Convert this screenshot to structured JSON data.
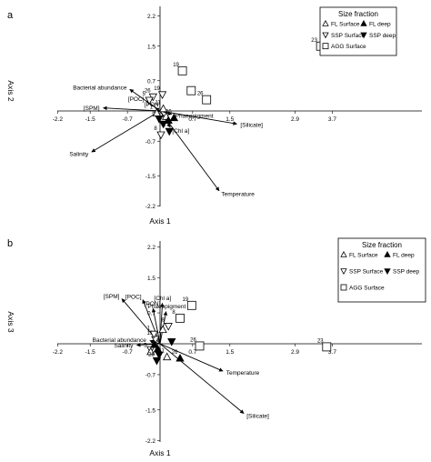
{
  "figure": {
    "panel_letters": [
      "a",
      "b"
    ]
  },
  "chart_data": [
    {
      "type": "scatter",
      "panel": "a",
      "title": "",
      "xlabel": "Axis 1",
      "ylabel": "Axis 2",
      "xlim": [
        -2.2,
        3.7
      ],
      "ylim": [
        -2.2,
        2.2
      ],
      "xticks": [
        "-2.2",
        "-1.5",
        "-0.7",
        "0.7",
        "1.5",
        "2.9",
        "3.7"
      ],
      "yticks": [
        "2.2",
        "1.5",
        "0.7",
        "-0.7",
        "-1.5",
        "-2.2"
      ],
      "legend": {
        "title": "Size fraction",
        "position": "top-right",
        "entries": [
          {
            "label": "FL Surface",
            "marker": "triangle-up-open"
          },
          {
            "label": "FL deep",
            "marker": "triangle-up-filled"
          },
          {
            "label": "SSP Surface",
            "marker": "triangle-down-open"
          },
          {
            "label": "SSP deep",
            "marker": "triangle-down-filled"
          },
          {
            "label": "AGG Surface",
            "marker": "square-open"
          }
        ]
      },
      "vectors": [
        {
          "label": "Bacterial abundance",
          "x": -0.65,
          "y": 0.5
        },
        {
          "label": "[POC]",
          "x": -0.28,
          "y": 0.23
        },
        {
          "label": "[PON]",
          "x": -0.1,
          "y": 0.07
        },
        {
          "label": "[SPM]",
          "x": -1.22,
          "y": 0.07
        },
        {
          "label": "Salinity",
          "x": -1.47,
          "y": -0.95
        },
        {
          "label": "[Chl a]",
          "x": 0.22,
          "y": -0.38
        },
        {
          "label": "Phaeopigment",
          "x": 0.25,
          "y": -0.08
        },
        {
          "label": "[Silicate]",
          "x": 1.65,
          "y": -0.3
        },
        {
          "label": "Temperature",
          "x": 1.27,
          "y": -1.85
        }
      ],
      "points": [
        {
          "group": "AGG Surface",
          "site": "23",
          "x": 3.45,
          "y": 1.5
        },
        {
          "group": "AGG Surface",
          "site": "19",
          "x": 0.48,
          "y": 0.93
        },
        {
          "group": "AGG Surface",
          "site": "",
          "x": 0.67,
          "y": 0.47
        },
        {
          "group": "AGG Surface",
          "site": "26",
          "x": 1.0,
          "y": 0.26
        },
        {
          "group": "SSP Surface",
          "site": "19",
          "x": 0.05,
          "y": 0.38
        },
        {
          "group": "SSP Surface",
          "site": "26",
          "x": -0.15,
          "y": 0.33
        },
        {
          "group": "SSP Surface",
          "site": "5",
          "x": -0.23,
          "y": 0.25
        },
        {
          "group": "FL Surface",
          "site": "11",
          "x": 0.07,
          "y": 0.05
        },
        {
          "group": "FL Surface",
          "site": "1",
          "x": -0.07,
          "y": -0.05
        },
        {
          "group": "FL Surface",
          "site": "",
          "x": 0.13,
          "y": -0.13
        },
        {
          "group": "SSP Surface",
          "site": "8",
          "x": 0.02,
          "y": -0.55
        },
        {
          "group": "SSP deep",
          "site": "8",
          "x": -0.02,
          "y": -0.18
        },
        {
          "group": "SSP deep",
          "site": "",
          "x": 0.07,
          "y": -0.3
        },
        {
          "group": "SSP deep",
          "site": "5",
          "x": 0.2,
          "y": -0.47
        },
        {
          "group": "FL deep",
          "site": "26",
          "x": 0.3,
          "y": -0.16
        },
        {
          "group": "FL deep",
          "site": "",
          "x": 0.18,
          "y": -0.22
        }
      ]
    },
    {
      "type": "scatter",
      "panel": "b",
      "title": "",
      "xlabel": "Axis 1",
      "ylabel": "Axis 3",
      "xlim": [
        -2.2,
        3.7
      ],
      "ylim": [
        -2.2,
        2.2
      ],
      "xticks": [
        "-2.2",
        "-1.5",
        "-0.7",
        "0.7",
        "1.5",
        "2.9",
        "3.7"
      ],
      "yticks": [
        "2.2",
        "1.5",
        "0.7",
        "-0.7",
        "-1.5",
        "-2.2"
      ],
      "legend": {
        "title": "Size fraction",
        "position": "top-right",
        "entries": [
          {
            "label": "FL Surface",
            "marker": "triangle-up-open"
          },
          {
            "label": "FL deep",
            "marker": "triangle-up-filled"
          },
          {
            "label": "SSP Surface",
            "marker": "triangle-down-open"
          },
          {
            "label": "SSP deep",
            "marker": "triangle-down-filled"
          },
          {
            "label": "AGG Surface",
            "marker": "square-open"
          }
        ]
      },
      "vectors": [
        {
          "label": "[SPM]",
          "x": -0.82,
          "y": 1.02
        },
        {
          "label": "[POC]",
          "x": -0.37,
          "y": 1.0
        },
        {
          "label": "[PON]",
          "x": -0.15,
          "y": 0.8
        },
        {
          "label": "[Chl a]",
          "x": 0.05,
          "y": 0.92
        },
        {
          "label": "Phaeopigment",
          "x": 0.13,
          "y": 0.73
        },
        {
          "label": "Bacterial abundance",
          "x": -0.22,
          "y": 0.07
        },
        {
          "label": "Salinity",
          "x": -0.5,
          "y": -0.03
        },
        {
          "label": "Temperature",
          "x": 1.35,
          "y": -0.62
        },
        {
          "label": "[Silicate]",
          "x": 1.8,
          "y": -1.58
        }
      ],
      "points": [
        {
          "group": "AGG Surface",
          "site": "19",
          "x": 0.68,
          "y": 0.87
        },
        {
          "group": "AGG Surface",
          "site": "8",
          "x": 0.43,
          "y": 0.58
        },
        {
          "group": "AGG Surface",
          "site": "26",
          "x": 0.85,
          "y": -0.05
        },
        {
          "group": "AGG Surface",
          "site": "23",
          "x": 3.58,
          "y": -0.07
        },
        {
          "group": "SSP Surface",
          "site": "8",
          "x": 0.18,
          "y": 0.4
        },
        {
          "group": "SSP Surface",
          "site": "19",
          "x": -0.1,
          "y": 0.1
        },
        {
          "group": "SSP Surface",
          "site": "1",
          "x": -0.13,
          "y": 0.22
        },
        {
          "group": "SSP Surface",
          "site": "",
          "x": -0.2,
          "y": -0.13
        },
        {
          "group": "FL Surface",
          "site": "11",
          "x": 0.15,
          "y": -0.3
        },
        {
          "group": "FL Surface",
          "site": "",
          "x": 0.06,
          "y": 0.32
        },
        {
          "group": "FL Surface",
          "site": "5",
          "x": -0.2,
          "y": -0.18
        },
        {
          "group": "FL deep",
          "site": "26",
          "x": 0.43,
          "y": -0.33
        },
        {
          "group": "FL deep",
          "site": "5",
          "x": -0.05,
          "y": -0.12
        },
        {
          "group": "FL deep",
          "site": "",
          "x": -0.12,
          "y": -0.02
        },
        {
          "group": "SSP deep",
          "site": "26",
          "x": -0.07,
          "y": -0.38
        },
        {
          "group": "SSP deep",
          "site": "",
          "x": 0.25,
          "y": 0.05
        },
        {
          "group": "SSP deep",
          "site": "",
          "x": -0.02,
          "y": -0.25
        }
      ]
    }
  ]
}
